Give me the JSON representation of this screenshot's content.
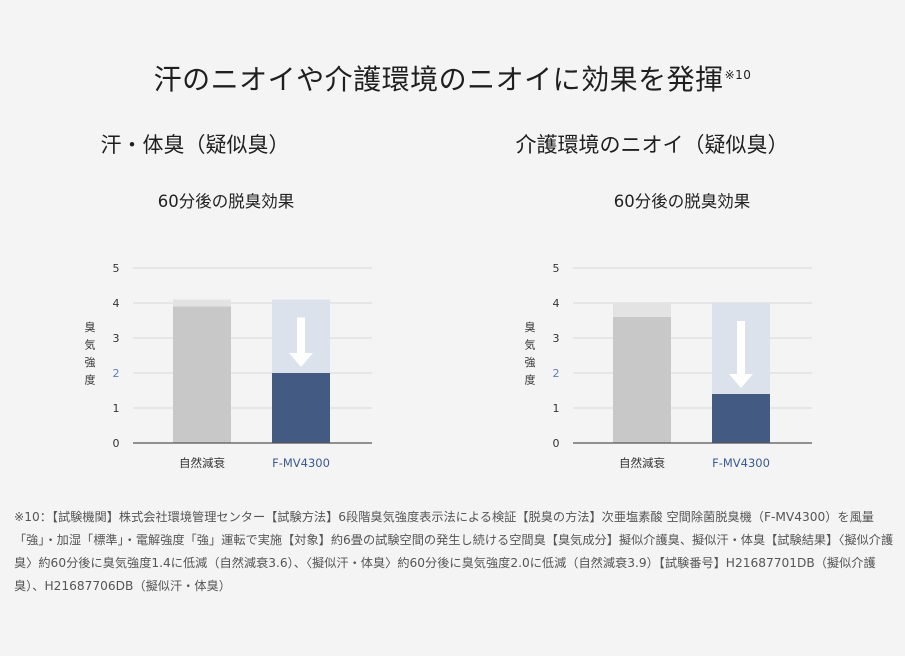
{
  "main_title": "汗のニオイや介護環境のニオイに効果を発揮",
  "main_title_note": "※10",
  "colors": {
    "background": "#f4f4f4",
    "natural_bar": "#c8c8c8",
    "natural_bar_top": "#e3e3e3",
    "product_bar": "#435a82",
    "product_bar_ghost": "#dbe2ec",
    "product_label": "#3b5a8f",
    "grid": "#d8d8d8",
    "axis": "#555555",
    "highlight_tick": "#5d7fb3",
    "arrow": "#ffffff"
  },
  "chart_data": [
    {
      "type": "bar",
      "title": "汗・体臭（疑似臭）",
      "subtitle": "60分後の脱臭効果",
      "ylabel": "臭気強度",
      "ylim": [
        0,
        5
      ],
      "yticks": [
        "0",
        "1",
        "2",
        "3",
        "4",
        "5"
      ],
      "highlight_tick": 2,
      "start_value": 4.1,
      "categories": [
        "自然減衰",
        "F-MV4300"
      ],
      "values": [
        3.9,
        2.0
      ],
      "grid": true
    },
    {
      "type": "bar",
      "title": "介護環境のニオイ（疑似臭）",
      "subtitle": "60分後の脱臭効果",
      "ylabel": "臭気強度",
      "ylim": [
        0,
        5
      ],
      "yticks": [
        "0",
        "1",
        "2",
        "3",
        "4",
        "5"
      ],
      "highlight_tick": 2,
      "start_value": 4.0,
      "categories": [
        "自然減衰",
        "F-MV4300"
      ],
      "values": [
        3.6,
        1.4
      ],
      "grid": true
    }
  ],
  "footnote": "※10：【試験機関】株式会社環境管理センター【試験方法】6段階臭気強度表示法による検証【脱臭の方法】次亜塩素酸 空間除菌脱臭機（F-MV4300）を風量「強」・加湿「標準」・電解強度「強」運転で実施【対象】約6畳の試験空間の発生し続ける空間臭【臭気成分】擬似介護臭、擬似汗・体臭【試験結果】〈擬似介護臭〉約60分後に臭気強度1.4に低減（自然減衰3.6）、〈擬似汗・体臭〉約60分後に臭気強度2.0に低減（自然減衰3.9）【試験番号】H21687701DB（擬似介護臭）、H21687706DB（擬似汗・体臭）"
}
